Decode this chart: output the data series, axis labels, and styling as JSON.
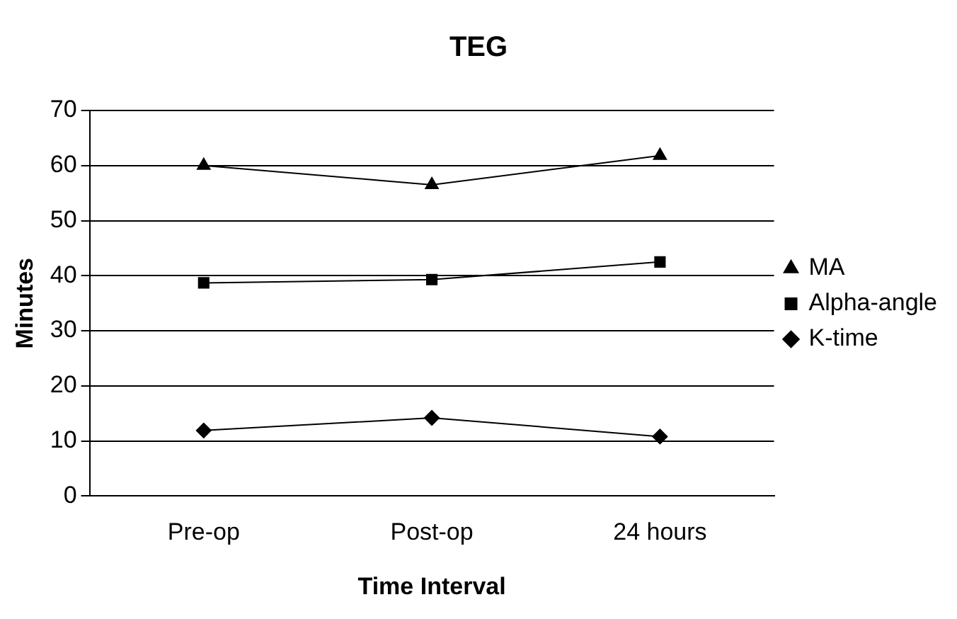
{
  "chart_data": {
    "type": "line",
    "title": "TEG",
    "xlabel": "Time Interval",
    "ylabel": "Minutes",
    "categories": [
      "Pre-op",
      "Post-op",
      "24 hours"
    ],
    "series": [
      {
        "name": "MA",
        "color": "#000000",
        "marker": "triangle",
        "values": [
          60,
          56.5,
          61.8
        ]
      },
      {
        "name": "Alpha-angle",
        "color": "#000000",
        "marker": "square",
        "values": [
          38.7,
          39.3,
          42.5
        ]
      },
      {
        "name": "K-time",
        "color": "#000000",
        "marker": "diamond",
        "values": [
          11.9,
          14.2,
          10.8
        ]
      }
    ],
    "ylim": [
      0,
      70
    ],
    "yticks": [
      0,
      10,
      20,
      30,
      40,
      50,
      60,
      70
    ],
    "grid": "y",
    "legend": "right",
    "line_style": "solid"
  }
}
